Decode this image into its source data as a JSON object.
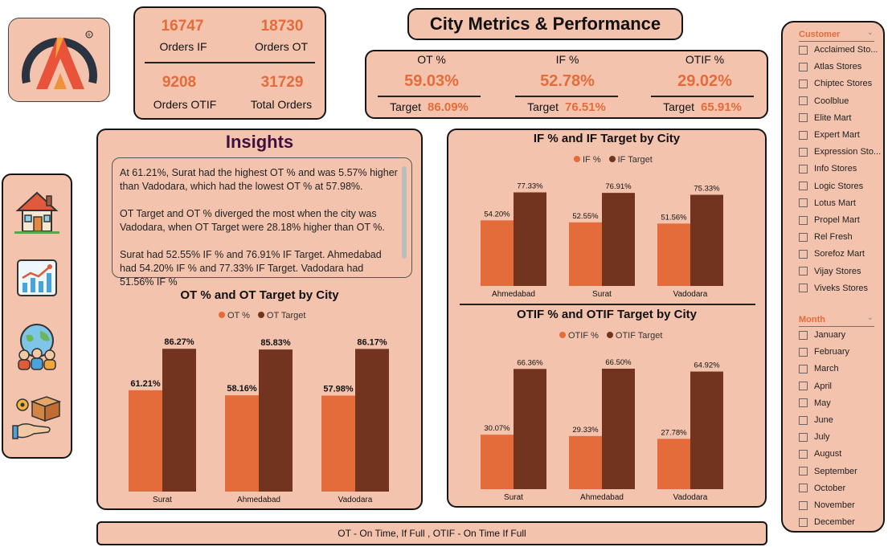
{
  "orders": {
    "if_value": "16747",
    "if_label": "Orders IF",
    "ot_value": "18730",
    "ot_label": "Orders OT",
    "otif_value": "9208",
    "otif_label": "Orders OTIF",
    "total_value": "31729",
    "total_label": "Total Orders"
  },
  "title": "City Metrics & Performance",
  "kpi": [
    {
      "label": "OT %",
      "value": "59.03%",
      "target_label": "Target",
      "target": "86.09%"
    },
    {
      "label": "IF %",
      "value": "52.78%",
      "target_label": "Target",
      "target": "76.51%"
    },
    {
      "label": "OTIF %",
      "value": "29.02%",
      "target_label": "Target",
      "target": "65.91%"
    }
  ],
  "nav": [
    {
      "icon": "home-icon"
    },
    {
      "icon": "analytics-icon"
    },
    {
      "icon": "people-globe-icon"
    },
    {
      "icon": "delivery-box-icon"
    }
  ],
  "insights": {
    "title": "Insights",
    "p1": "At 61.21%, Surat had the highest OT % and was 5.57% higher than Vadodara, which had the lowest OT % at 57.98%.",
    "p2": "OT Target and OT % diverged the most when the city was Vadodara, when OT Target were 28.18% higher than OT %.",
    "p3": "Surat had 52.55% IF % and 76.91% IF Target. Ahmedabad had 54.20% IF % and 77.33% IF Target. Vadodara had 51.56% IF %"
  },
  "colors": {
    "actual": "#e46c3b",
    "target": "#73341f",
    "panel": "#f4c3ae",
    "accent": "#e46c3b"
  },
  "chart_data": [
    {
      "type": "bar",
      "title": "OT % and OT Target by City",
      "categories": [
        "Surat",
        "Ahmedabad",
        "Vadodara"
      ],
      "series": [
        {
          "name": "OT %",
          "values": [
            61.21,
            58.16,
            57.98
          ],
          "labels": [
            "61.21%",
            "58.16%",
            "57.98%"
          ]
        },
        {
          "name": "OT Target",
          "values": [
            86.27,
            85.83,
            86.17
          ],
          "labels": [
            "86.27%",
            "85.83%",
            "86.17%"
          ]
        }
      ],
      "legend": "top"
    },
    {
      "type": "bar",
      "title": "IF % and IF Target by City",
      "categories": [
        "Ahmedabad",
        "Surat",
        "Vadodara"
      ],
      "series": [
        {
          "name": "IF %",
          "values": [
            54.2,
            52.55,
            51.56
          ],
          "labels": [
            "54.20%",
            "52.55%",
            "51.56%"
          ]
        },
        {
          "name": "IF Target",
          "values": [
            77.33,
            76.91,
            75.33
          ],
          "labels": [
            "77.33%",
            "76.91%",
            "75.33%"
          ]
        }
      ],
      "legend": "top"
    },
    {
      "type": "bar",
      "title": "OTIF % and OTIF Target by City",
      "categories": [
        "Surat",
        "Ahmedabad",
        "Vadodara"
      ],
      "series": [
        {
          "name": "OTIF %",
          "values": [
            30.07,
            29.33,
            27.78
          ],
          "labels": [
            "30.07%",
            "29.33%",
            "27.78%"
          ]
        },
        {
          "name": "OTIF Target",
          "values": [
            66.36,
            66.5,
            64.92
          ],
          "labels": [
            "66.36%",
            "66.50%",
            "64.92%"
          ]
        }
      ],
      "legend": "top"
    }
  ],
  "footer": "OT - On Time, If Full , OTIF - On Time If Full",
  "slicer": {
    "customer_header": "Customer",
    "customers": [
      "Acclaimed Sto...",
      "Atlas Stores",
      "Chiptec Stores",
      "Coolblue",
      "Elite Mart",
      "Expert Mart",
      "Expression Sto...",
      "Info Stores",
      "Logic Stores",
      "Lotus Mart",
      "Propel Mart",
      "Rel Fresh",
      "Sorefoz Mart",
      "Vijay Stores",
      "Viveks Stores"
    ],
    "month_header": "Month",
    "months": [
      "January",
      "February",
      "March",
      "April",
      "May",
      "June",
      "July",
      "August",
      "September",
      "October",
      "November",
      "December"
    ]
  }
}
